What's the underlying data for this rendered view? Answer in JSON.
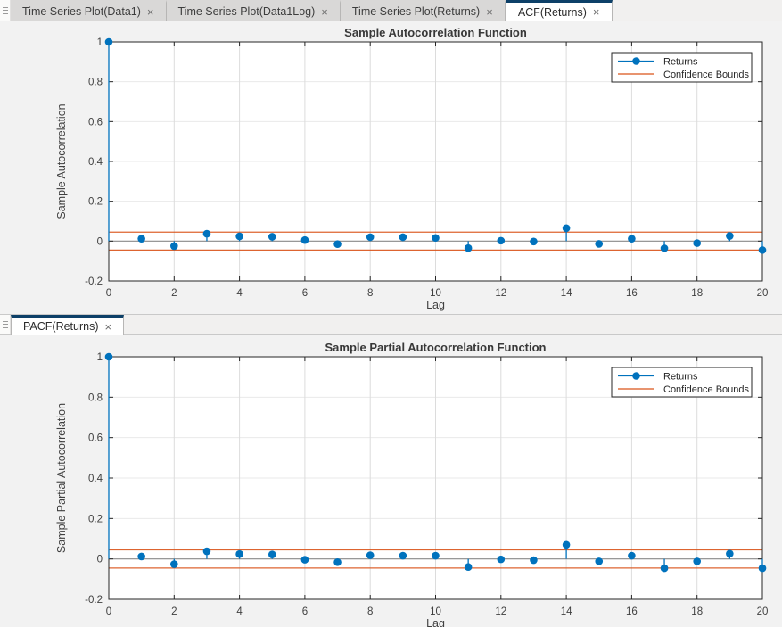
{
  "ui": {
    "close_glyph": "×"
  },
  "colors": {
    "series_blue": "#0072BD",
    "bounds_orange": "#D95319",
    "active_tab_accent": "#0d4068",
    "axes_edge": "#262626",
    "tick_text": "#404040",
    "title_text": "#383838",
    "zero_line": "#8c8c8c",
    "grid_vertical": "#dcdcdc",
    "grid_horizontal": "#e9e9e9"
  },
  "panes": [
    {
      "tabs": [
        {
          "label": "Time Series Plot(Data1)",
          "active": false
        },
        {
          "label": "Time Series Plot(Data1Log)",
          "active": false
        },
        {
          "label": "Time Series Plot(Returns)",
          "active": false
        },
        {
          "label": "ACF(Returns)",
          "active": true
        }
      ]
    },
    {
      "tabs": [
        {
          "label": "PACF(Returns)",
          "active": true
        }
      ]
    }
  ],
  "chart_data": [
    {
      "type": "stem",
      "title": "Sample Autocorrelation Function",
      "xlabel": "Lag",
      "ylabel": "Sample Autocorrelation",
      "xlim": [
        0,
        20
      ],
      "ylim": [
        -0.2,
        1
      ],
      "xticks": [
        0,
        2,
        4,
        6,
        8,
        10,
        12,
        14,
        16,
        18,
        20
      ],
      "xtick_labels": [
        "0",
        "2",
        "4",
        "6",
        "8",
        "10",
        "12",
        "14",
        "16",
        "18",
        "20"
      ],
      "yticks": [
        -0.2,
        0,
        0.2,
        0.4,
        0.6,
        0.8,
        1
      ],
      "ytick_labels": [
        "-0.2",
        "0",
        "0.2",
        "0.4",
        "0.6",
        "0.8",
        "1"
      ],
      "grid": true,
      "legend_position": "top-right",
      "legend": [
        {
          "label": "Returns",
          "marker": true
        },
        {
          "label": "Confidence Bounds",
          "marker": false
        }
      ],
      "confidence_bounds": [
        0.045,
        -0.045
      ],
      "x": [
        0,
        1,
        2,
        3,
        4,
        5,
        6,
        7,
        8,
        9,
        10,
        11,
        12,
        13,
        14,
        15,
        16,
        17,
        18,
        19,
        20
      ],
      "values": [
        1,
        0.012,
        -0.025,
        0.037,
        0.024,
        0.022,
        0.005,
        -0.015,
        0.02,
        0.02,
        0.016,
        -0.035,
        0.002,
        -0.002,
        0.065,
        -0.014,
        0.012,
        -0.036,
        -0.01,
        0.026,
        -0.045
      ]
    },
    {
      "type": "stem",
      "title": "Sample Partial Autocorrelation Function",
      "xlabel": "Lag",
      "ylabel": "Sample Partial Autocorrelation",
      "xlim": [
        0,
        20
      ],
      "ylim": [
        -0.2,
        1
      ],
      "xticks": [
        0,
        2,
        4,
        6,
        8,
        10,
        12,
        14,
        16,
        18,
        20
      ],
      "xtick_labels": [
        "0",
        "2",
        "4",
        "6",
        "8",
        "10",
        "12",
        "14",
        "16",
        "18",
        "20"
      ],
      "yticks": [
        -0.2,
        0,
        0.2,
        0.4,
        0.6,
        0.8,
        1
      ],
      "ytick_labels": [
        "-0.2",
        "0",
        "0.2",
        "0.4",
        "0.6",
        "0.8",
        "1"
      ],
      "grid": true,
      "legend_position": "top-right",
      "legend": [
        {
          "label": "Returns",
          "marker": true
        },
        {
          "label": "Confidence Bounds",
          "marker": false
        }
      ],
      "confidence_bounds": [
        0.045,
        -0.045
      ],
      "x": [
        0,
        1,
        2,
        3,
        4,
        5,
        6,
        7,
        8,
        9,
        10,
        11,
        12,
        13,
        14,
        15,
        16,
        17,
        18,
        19,
        20
      ],
      "values": [
        1,
        0.012,
        -0.026,
        0.038,
        0.024,
        0.022,
        -0.004,
        -0.016,
        0.018,
        0.016,
        0.016,
        -0.04,
        -0.002,
        -0.006,
        0.07,
        -0.012,
        0.016,
        -0.046,
        -0.012,
        0.026,
        -0.046
      ]
    }
  ]
}
